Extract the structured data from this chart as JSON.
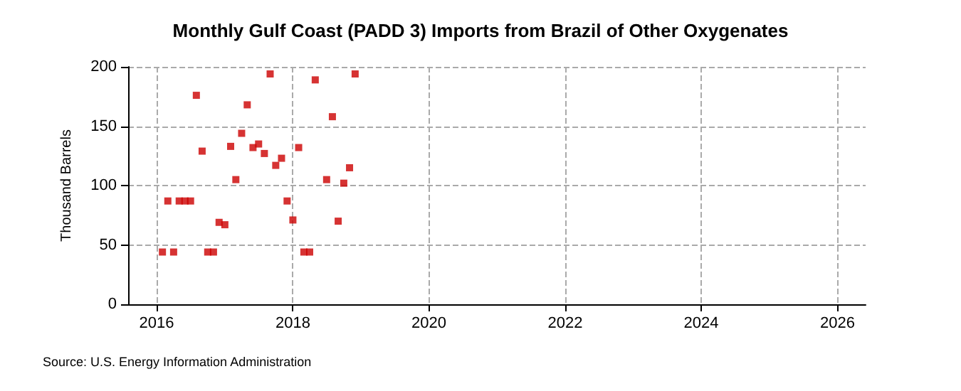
{
  "chart_data": {
    "type": "scatter",
    "title": "Monthly Gulf Coast (PADD 3) Imports from Brazil of Other Oxygenates",
    "ylabel": "Thousand Barrels",
    "annotations": [
      "Source: U.S. Energy Information Administration"
    ],
    "x": [
      "2016-02",
      "2016-03",
      "2016-04",
      "2016-05",
      "2016-06",
      "2016-07",
      "2016-08",
      "2016-09",
      "2016-10",
      "2016-11",
      "2016-12",
      "2017-01",
      "2017-02",
      "2017-03",
      "2017-04",
      "2017-05",
      "2017-06",
      "2017-07",
      "2017-08",
      "2017-09",
      "2017-10",
      "2017-11",
      "2017-12",
      "2018-01",
      "2018-02",
      "2018-03",
      "2018-04",
      "2018-05",
      "2018-07",
      "2018-08",
      "2018-09",
      "2018-10",
      "2018-11",
      "2018-12"
    ],
    "series": [
      {
        "color": "#cc0000",
        "values": [
          44,
          87,
          44,
          87,
          87,
          87,
          176,
          129,
          44,
          44,
          69,
          67,
          133,
          105,
          144,
          168,
          132,
          135,
          127,
          194,
          117,
          123,
          87,
          71,
          132,
          44,
          44,
          189,
          105,
          158,
          70,
          102,
          115,
          194
        ]
      }
    ],
    "xlim": [
      "2015-08",
      "2026-06"
    ],
    "xticks": [
      "2016",
      "2018",
      "2020",
      "2022",
      "2024",
      "2026"
    ],
    "ylim": [
      0,
      200
    ],
    "yticks": [
      0,
      50,
      100,
      150,
      200
    ],
    "grid": true,
    "marker": "square"
  }
}
